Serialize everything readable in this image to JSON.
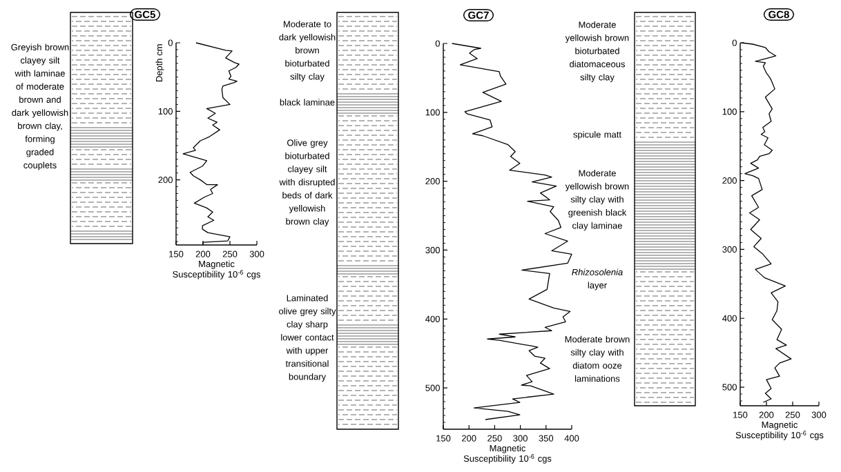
{
  "chart_data": [
    {
      "type": "line",
      "title": "GC5",
      "xlabel": "Magnetic Susceptibility 10$^{-6}$ cgs",
      "ylabel": "Depth cm",
      "annotations": [
        "Greyish brown clayey silt with laminae of moderate brown and dark yellowish brown clay, forming graded couplets"
      ],
      "xlim": [
        150,
        300
      ],
      "xticks": [
        150,
        200,
        250,
        300
      ],
      "ylim": [
        295,
        0
      ],
      "yticks": [
        0,
        {
          "value": 10,
          "label": null
        },
        {
          "value": 20,
          "label": null
        },
        {
          "value": 30,
          "label": null
        },
        {
          "value": 40,
          "label": null
        },
        {
          "value": 50,
          "label": null
        },
        {
          "value": 60,
          "label": null
        },
        {
          "value": 70,
          "label": null
        },
        {
          "value": 80,
          "label": null
        },
        {
          "value": 90,
          "label": null
        },
        100,
        {
          "value": 110,
          "label": null
        },
        {
          "value": 120,
          "label": null
        },
        {
          "value": 130,
          "label": null
        },
        {
          "value": 140,
          "label": null
        },
        {
          "value": 150,
          "label": null
        },
        {
          "value": 160,
          "label": null
        },
        {
          "value": 170,
          "label": null
        },
        {
          "value": 180,
          "label": null
        },
        {
          "value": 190,
          "label": null
        },
        200,
        {
          "value": 210,
          "label": null
        },
        {
          "value": 220,
          "label": null
        },
        {
          "value": 230,
          "label": null
        },
        {
          "value": 240,
          "label": null
        },
        {
          "value": 250,
          "label": null
        },
        {
          "value": 260,
          "label": null
        },
        {
          "value": 270,
          "label": null
        },
        {
          "value": 280,
          "label": null
        },
        {
          "value": 290,
          "label": null
        }
      ],
      "series": [
        {
          "color": "#000000",
          "x": [
            187,
            242,
            254,
            242,
            259,
            267,
            261,
            248,
            252,
            248,
            263,
            258,
            237,
            235,
            237,
            250,
            207,
            223,
            209,
            226,
            218,
            231,
            212,
            195,
            182,
            186,
            163,
            207,
            199,
            176,
            182,
            195,
            207,
            227,
            214,
            218,
            203,
            184,
            207,
            218,
            209,
            220,
            199,
            199,
            209,
            250,
            246,
            200,
            200
          ],
          "values": [
            0,
            11,
            12,
            22,
            29,
            31,
            36,
            41,
            49,
            53,
            56,
            58,
            63,
            68,
            80,
            90,
            96,
            103,
            110,
            116,
            120,
            127,
            137,
            143,
            153,
            157,
            162,
            172,
            180,
            189,
            194,
            200,
            207,
            207,
            214,
            220,
            225,
            234,
            241,
            247,
            254,
            259,
            267,
            272,
            277,
            283,
            289,
            291,
            295
          ]
        }
      ]
    },
    {
      "type": "line",
      "title": "GC7",
      "xlabel": "Magnetic Susceptibility 10$^{-6}$ cgs",
      "annotations": [
        "Moderate to dark yellowish brown bioturbated silty clay",
        "black laminae",
        "Olive grey bioturbated clayey silt with disrupted beds of dark yellowish brown clay",
        "Laminated olive grey silty clay sharp lower contact with upper transitional boundary"
      ],
      "xlim": [
        150,
        400
      ],
      "xticks": [
        150,
        200,
        250,
        300,
        350,
        400
      ],
      "ylim": [
        560,
        0
      ],
      "yticks": [
        0,
        {
          "value": 10,
          "label": null
        },
        {
          "value": 20,
          "label": null
        },
        {
          "value": 30,
          "label": null
        },
        {
          "value": 40,
          "label": null
        },
        {
          "value": 50,
          "label": null
        },
        {
          "value": 60,
          "label": null
        },
        {
          "value": 70,
          "label": null
        },
        {
          "value": 80,
          "label": null
        },
        {
          "value": 90,
          "label": null
        },
        100,
        {
          "value": 110,
          "label": null
        },
        {
          "value": 120,
          "label": null
        },
        {
          "value": 130,
          "label": null
        },
        {
          "value": 140,
          "label": null
        },
        {
          "value": 150,
          "label": null
        },
        {
          "value": 160,
          "label": null
        },
        {
          "value": 170,
          "label": null
        },
        {
          "value": 180,
          "label": null
        },
        {
          "value": 190,
          "label": null
        },
        200,
        {
          "value": 210,
          "label": null
        },
        {
          "value": 220,
          "label": null
        },
        {
          "value": 230,
          "label": null
        },
        {
          "value": 240,
          "label": null
        },
        {
          "value": 250,
          "label": null
        },
        {
          "value": 260,
          "label": null
        },
        {
          "value": 270,
          "label": null
        },
        {
          "value": 280,
          "label": null
        },
        {
          "value": 290,
          "label": null
        },
        300,
        {
          "value": 310,
          "label": null
        },
        {
          "value": 320,
          "label": null
        },
        {
          "value": 330,
          "label": null
        },
        {
          "value": 340,
          "label": null
        },
        {
          "value": 350,
          "label": null
        },
        {
          "value": 360,
          "label": null
        },
        {
          "value": 370,
          "label": null
        },
        {
          "value": 380,
          "label": null
        },
        {
          "value": 390,
          "label": null
        },
        400,
        {
          "value": 410,
          "label": null
        },
        {
          "value": 420,
          "label": null
        },
        {
          "value": 430,
          "label": null
        },
        {
          "value": 440,
          "label": null
        },
        {
          "value": 450,
          "label": null
        },
        {
          "value": 460,
          "label": null
        },
        {
          "value": 470,
          "label": null
        },
        {
          "value": 480,
          "label": null
        },
        {
          "value": 490,
          "label": null
        },
        500,
        {
          "value": 510,
          "label": null
        },
        {
          "value": 520,
          "label": null
        },
        {
          "value": 530,
          "label": null
        },
        {
          "value": 540,
          "label": null
        },
        {
          "value": 550,
          "label": null
        }
      ],
      "series": [
        {
          "color": "#000000",
          "x": [
            167,
            223,
            210,
            201,
            216,
            183,
            259,
            261,
            272,
            227,
            263,
            192,
            196,
            241,
            245,
            207,
            227,
            276,
            290,
            281,
            299,
            279,
            348,
            361,
            323,
            370,
            339,
            357,
            314,
            365,
            358,
            374,
            379,
            348,
            392,
            361,
            400,
            392,
            303,
            357,
            352,
            317,
            365,
            397,
            383,
            388,
            348,
            361,
            259,
            290,
            236,
            259,
            321,
            334,
            317,
            328,
            348,
            339,
            357,
            312,
            323,
            302,
            320,
            365,
            285,
            299,
            210,
            276,
            299,
            232
          ],
          "values": [
            0,
            7,
            9,
            14,
            22,
            31,
            41,
            47,
            59,
            71,
            84,
            99,
            102,
            111,
            121,
            131,
            134,
            147,
            157,
            164,
            174,
            184,
            191,
            194,
            201,
            207,
            217,
            227,
            229,
            237,
            244,
            257,
            267,
            276,
            287,
            301,
            306,
            319,
            329,
            334,
            357,
            371,
            384,
            389,
            397,
            404,
            412,
            417,
            422,
            426,
            429,
            431,
            439,
            441,
            446,
            454,
            457,
            464,
            472,
            482,
            491,
            496,
            497,
            509,
            516,
            521,
            529,
            534,
            539,
            546
          ]
        }
      ]
    },
    {
      "type": "line",
      "title": "GC8",
      "xlabel": "Magnetic Susceptibility 10$^{-6}$ cgs",
      "annotations": [
        "Moderate yellowish brown bioturbated diatomaceous silty clay",
        "spicule matt",
        "Moderate yellowish brown silty clay with greenish black clay laminae",
        "*Rhizosolenia* layer",
        "Moderate brown silty clay with diatom ooze laminations"
      ],
      "xlim": [
        150,
        300
      ],
      "xticks": [
        150,
        200,
        250,
        300
      ],
      "ylim": [
        527,
        0
      ],
      "yticks": [
        0,
        {
          "value": 10,
          "label": null
        },
        {
          "value": 20,
          "label": null
        },
        {
          "value": 30,
          "label": null
        },
        {
          "value": 40,
          "label": null
        },
        {
          "value": 50,
          "label": null
        },
        {
          "value": 60,
          "label": null
        },
        {
          "value": 70,
          "label": null
        },
        {
          "value": 80,
          "label": null
        },
        {
          "value": 90,
          "label": null
        },
        100,
        {
          "value": 110,
          "label": null
        },
        {
          "value": 120,
          "label": null
        },
        {
          "value": 130,
          "label": null
        },
        {
          "value": 140,
          "label": null
        },
        {
          "value": 150,
          "label": null
        },
        {
          "value": 160,
          "label": null
        },
        {
          "value": 170,
          "label": null
        },
        {
          "value": 180,
          "label": null
        },
        {
          "value": 190,
          "label": null
        },
        200,
        {
          "value": 210,
          "label": null
        },
        {
          "value": 220,
          "label": null
        },
        {
          "value": 230,
          "label": null
        },
        {
          "value": 240,
          "label": null
        },
        {
          "value": 250,
          "label": null
        },
        {
          "value": 260,
          "label": null
        },
        {
          "value": 270,
          "label": null
        },
        {
          "value": 280,
          "label": null
        },
        {
          "value": 290,
          "label": null
        },
        300,
        {
          "value": 310,
          "label": null
        },
        {
          "value": 320,
          "label": null
        },
        {
          "value": 330,
          "label": null
        },
        {
          "value": 340,
          "label": null
        },
        {
          "value": 350,
          "label": null
        },
        {
          "value": 360,
          "label": null
        },
        {
          "value": 370,
          "label": null
        },
        {
          "value": 380,
          "label": null
        },
        {
          "value": 390,
          "label": null
        },
        400,
        {
          "value": 410,
          "label": null
        },
        {
          "value": 420,
          "label": null
        },
        {
          "value": 430,
          "label": null
        },
        {
          "value": 440,
          "label": null
        },
        {
          "value": 450,
          "label": null
        },
        {
          "value": 460,
          "label": null
        },
        {
          "value": 470,
          "label": null
        },
        {
          "value": 480,
          "label": null
        },
        {
          "value": 490,
          "label": null
        },
        500,
        {
          "value": 510,
          "label": null
        },
        {
          "value": 520,
          "label": null
        }
      ],
      "series": [
        {
          "color": "#000000",
          "x": [
            152,
            174,
            198,
            205,
            218,
            209,
            179,
            198,
            194,
            200,
            205,
            209,
            216,
            198,
            211,
            205,
            209,
            193,
            197,
            190,
            203,
            196,
            211,
            205,
            187,
            183,
            170,
            185,
            159,
            174,
            185,
            192,
            172,
            185,
            168,
            187,
            170,
            179,
            190,
            176,
            192,
            209,
            179,
            196,
            236,
            209,
            222,
            220,
            211,
            229,
            220,
            238,
            218,
            247,
            225,
            216,
            225,
            200,
            209,
            198,
            209,
            194
          ],
          "values": [
            0,
            2,
            7,
            13,
            19,
            21,
            27,
            29,
            34,
            44,
            49,
            54,
            67,
            79,
            96,
            103,
            114,
            123,
            129,
            133,
            138,
            148,
            156,
            161,
            165,
            170,
            175,
            182,
            190,
            193,
            197,
            213,
            222,
            239,
            247,
            257,
            271,
            277,
            284,
            296,
            306,
            321,
            329,
            341,
            353,
            363,
            376,
            389,
            402,
            416,
            431,
            439,
            444,
            459,
            465,
            472,
            484,
            489,
            502,
            509,
            517,
            522
          ]
        }
      ]
    }
  ]
}
